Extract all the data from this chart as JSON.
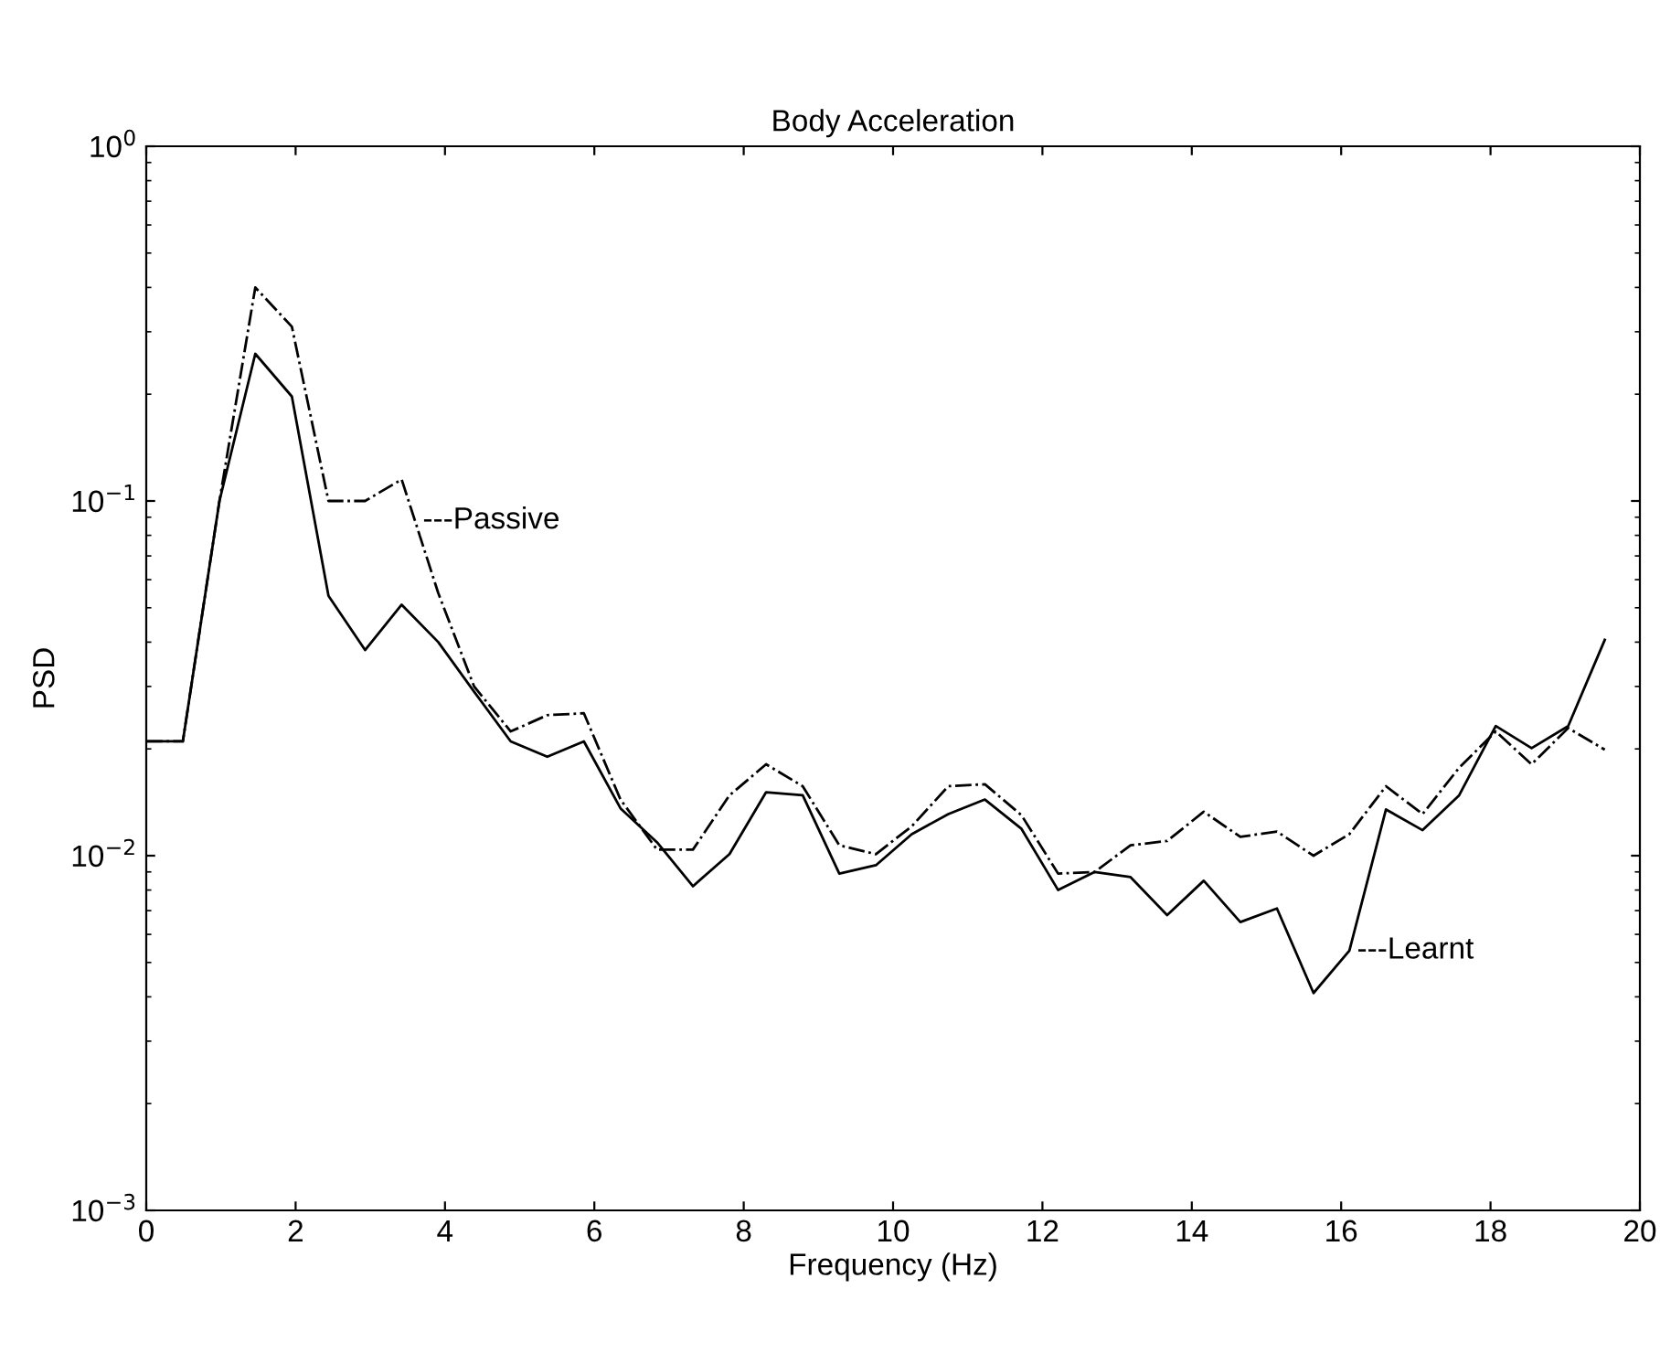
{
  "chart_data": {
    "type": "line",
    "title": "Body Acceleration",
    "xlabel": "Frequency (Hz)",
    "ylabel": "PSD",
    "x": [
      0,
      0.49,
      0.98,
      1.46,
      1.95,
      2.44,
      2.93,
      3.42,
      3.91,
      4.39,
      4.88,
      5.37,
      5.86,
      6.35,
      6.84,
      7.32,
      7.81,
      8.3,
      8.79,
      9.28,
      9.77,
      10.25,
      10.74,
      11.23,
      11.72,
      12.21,
      12.7,
      13.18,
      13.67,
      14.16,
      14.65,
      15.14,
      15.63,
      16.11,
      16.6,
      17.09,
      17.58,
      18.07,
      18.55,
      19.04,
      19.53
    ],
    "series": [
      {
        "color": "#000000",
        "line_style": "solid",
        "values": [
          0.021,
          0.021,
          0.1,
          0.26,
          0.197,
          0.054,
          0.038,
          0.051,
          0.04,
          0.029,
          0.021,
          0.019,
          0.021,
          0.0136,
          0.0109,
          0.0082,
          0.0101,
          0.0151,
          0.0148,
          0.0089,
          0.0094,
          0.0115,
          0.0131,
          0.0144,
          0.0119,
          0.008,
          0.009,
          0.0087,
          0.0068,
          0.0085,
          0.0065,
          0.0071,
          0.0041,
          0.0054,
          0.0135,
          0.0118,
          0.0148,
          0.0232,
          0.0201,
          0.0232,
          0.0406
        ]
      },
      {
        "color": "#000000",
        "line_style": "dashdot",
        "values": [
          0.021,
          0.021,
          0.1,
          0.4,
          0.31,
          0.1,
          0.1,
          0.115,
          0.055,
          0.03,
          0.0224,
          0.0249,
          0.0252,
          0.0144,
          0.0104,
          0.0104,
          0.0148,
          0.0181,
          0.0157,
          0.0107,
          0.0101,
          0.0121,
          0.0157,
          0.0159,
          0.013,
          0.0089,
          0.009,
          0.0107,
          0.011,
          0.0133,
          0.0113,
          0.0117,
          0.01,
          0.0115,
          0.0157,
          0.0131,
          0.0177,
          0.0224,
          0.0181,
          0.0229,
          0.0199
        ]
      }
    ],
    "log": "y",
    "xlim": [
      0,
      20
    ],
    "xticks": [
      0,
      2,
      4,
      6,
      8,
      10,
      12,
      14,
      16,
      18,
      20
    ],
    "ylim": [
      0.001,
      1
    ],
    "yticks": [
      {
        "value": 0.001,
        "label": "10$^{−3}$"
      },
      {
        "value": 0.01,
        "label": "10$^{−2}$"
      },
      {
        "value": 0.1,
        "label": "10$^{−1}$"
      },
      {
        "value": 1,
        "label": "10$^{0}$"
      }
    ],
    "grid": false,
    "legend": false,
    "annotations": [
      {
        "text": "---Passive",
        "x": 3.6,
        "y": 0.088
      },
      {
        "text": "---Learnt",
        "x": 16.11,
        "y": 0.0054
      }
    ]
  }
}
